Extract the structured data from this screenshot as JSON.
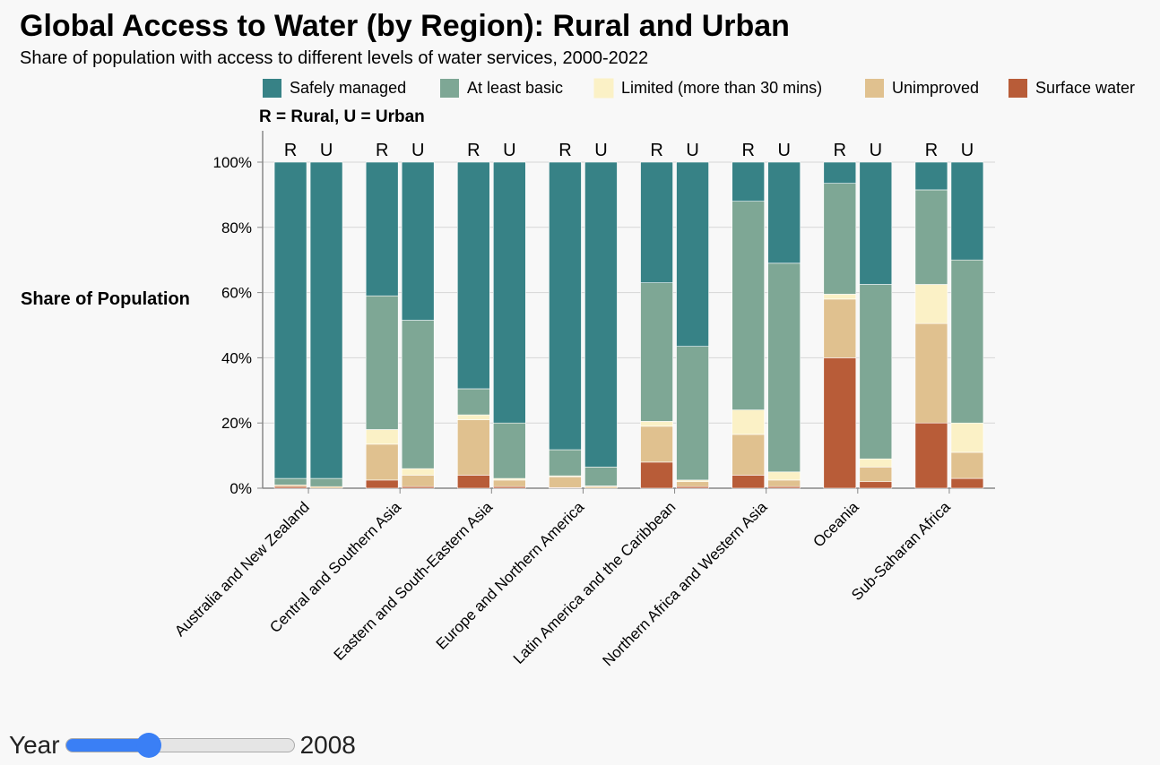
{
  "header": {
    "title": "Global Access to Water (by Region): Rural and Urban",
    "subtitle": "Share of population with access to different levels of water services, 2000-2022"
  },
  "legend_note": "R = Rural, U = Urban",
  "slider": {
    "label": "Year",
    "min": 2000,
    "max": 2022,
    "value": 2008,
    "value_text": "2008"
  },
  "chart_data": {
    "type": "bar",
    "stacked": true,
    "ylabel": "Share of Population",
    "ylim": [
      0,
      100
    ],
    "yticks": [
      "0%",
      "20%",
      "40%",
      "60%",
      "80%",
      "100%"
    ],
    "grid": true,
    "legend_position": "top-right",
    "bar_labels": [
      "R",
      "U"
    ],
    "stack_order": [
      "Surface water",
      "Unimproved",
      "Limited (more than 30 mins)",
      "At least basic",
      "Safely managed"
    ],
    "series_meta": [
      {
        "name": "Safely managed",
        "color": "#378286"
      },
      {
        "name": "At least basic",
        "color": "#7ea795"
      },
      {
        "name": "Limited (more than 30 mins)",
        "color": "#fbf1c6"
      },
      {
        "name": "Unimproved",
        "color": "#e0c18f"
      },
      {
        "name": "Surface water",
        "color": "#b85c38"
      }
    ],
    "categories": [
      {
        "region": "Australia and New Zealand",
        "R": {
          "Surface water": 0.5,
          "Unimproved": 0.5,
          "Limited (more than 30 mins)": 0,
          "At least basic": 2,
          "Safely managed": 97
        },
        "U": {
          "Surface water": 0,
          "Unimproved": 0.5,
          "Limited (more than 30 mins)": 0,
          "At least basic": 2.5,
          "Safely managed": 97
        }
      },
      {
        "region": "Central and Southern Asia",
        "R": {
          "Surface water": 2.5,
          "Unimproved": 11,
          "Limited (more than 30 mins)": 4.5,
          "At least basic": 41,
          "Safely managed": 41
        },
        "U": {
          "Surface water": 0.5,
          "Unimproved": 3.5,
          "Limited (more than 30 mins)": 2,
          "At least basic": 45.5,
          "Safely managed": 48.5
        }
      },
      {
        "region": "Eastern and South-Eastern Asia",
        "R": {
          "Surface water": 4,
          "Unimproved": 17,
          "Limited (more than 30 mins)": 1.5,
          "At least basic": 8,
          "Safely managed": 69.5
        },
        "U": {
          "Surface water": 0.5,
          "Unimproved": 2,
          "Limited (more than 30 mins)": 0.5,
          "At least basic": 17,
          "Safely managed": 80
        }
      },
      {
        "region": "Europe and Northern America",
        "R": {
          "Surface water": 0.2,
          "Unimproved": 3.3,
          "Limited (more than 30 mins)": 0.3,
          "At least basic": 8,
          "Safely managed": 88.2
        },
        "U": {
          "Surface water": 0,
          "Unimproved": 0.5,
          "Limited (more than 30 mins)": 0.2,
          "At least basic": 5.8,
          "Safely managed": 93.5
        }
      },
      {
        "region": "Latin America and the Caribbean",
        "R": {
          "Surface water": 8,
          "Unimproved": 11,
          "Limited (more than 30 mins)": 1.5,
          "At least basic": 42.5,
          "Safely managed": 37
        },
        "U": {
          "Surface water": 0.5,
          "Unimproved": 1.5,
          "Limited (more than 30 mins)": 0.5,
          "At least basic": 41,
          "Safely managed": 56.5
        }
      },
      {
        "region": "Northern Africa and Western Asia",
        "R": {
          "Surface water": 4,
          "Unimproved": 12.5,
          "Limited (more than 30 mins)": 7.5,
          "At least basic": 64,
          "Safely managed": 12
        },
        "U": {
          "Surface water": 0.5,
          "Unimproved": 2,
          "Limited (more than 30 mins)": 2.5,
          "At least basic": 64,
          "Safely managed": 31
        }
      },
      {
        "region": "Oceania",
        "R": {
          "Surface water": 40,
          "Unimproved": 18,
          "Limited (more than 30 mins)": 1.5,
          "At least basic": 34,
          "Safely managed": 6.5
        },
        "U": {
          "Surface water": 2,
          "Unimproved": 4.5,
          "Limited (more than 30 mins)": 2.5,
          "At least basic": 53.5,
          "Safely managed": 37.5
        }
      },
      {
        "region": "Sub-Saharan Africa",
        "R": {
          "Surface water": 20,
          "Unimproved": 30.5,
          "Limited (more than 30 mins)": 12,
          "At least basic": 29,
          "Safely managed": 8.5
        },
        "U": {
          "Surface water": 3,
          "Unimproved": 8,
          "Limited (more than 30 mins)": 9,
          "At least basic": 50,
          "Safely managed": 30
        }
      }
    ]
  }
}
